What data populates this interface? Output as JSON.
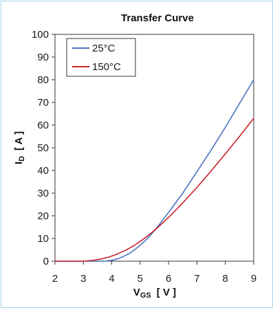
{
  "chart_data": {
    "type": "line",
    "title": "Transfer Curve",
    "xlabel": {
      "main": "V",
      "sub": "GS",
      "unit": "[ V ]"
    },
    "ylabel": {
      "main": "I",
      "sub": "D",
      "unit": "[ A ]"
    },
    "xlim": [
      2,
      9
    ],
    "ylim": [
      0,
      100
    ],
    "x_ticks": [
      2,
      3,
      4,
      5,
      6,
      7,
      8,
      9
    ],
    "y_ticks": [
      0,
      10,
      20,
      30,
      40,
      50,
      60,
      70,
      80,
      90,
      100
    ],
    "grid": false,
    "legend_position": "top-left",
    "series": [
      {
        "name": "25°C",
        "color": "#4a72c0",
        "x": [
          2.0,
          3.5,
          3.8,
          4.0,
          4.2,
          4.4,
          4.6,
          4.8,
          5.0,
          5.2,
          5.4,
          5.6,
          5.8,
          6.0,
          6.5,
          7.0,
          7.5,
          8.0,
          8.5,
          9.0
        ],
        "y": [
          0,
          0,
          0.1,
          0.4,
          1.0,
          2.0,
          3.3,
          5.0,
          7.0,
          9.3,
          12.0,
          15.0,
          18.2,
          21.5,
          30.0,
          39.5,
          49.0,
          59.0,
          69.5,
          80.0
        ]
      },
      {
        "name": "150°C",
        "color": "#c82028",
        "x": [
          2.0,
          3.0,
          3.3,
          3.6,
          3.9,
          4.2,
          4.5,
          4.8,
          5.1,
          5.4,
          5.7,
          6.0,
          6.5,
          7.0,
          7.5,
          8.0,
          8.5,
          9.0
        ],
        "y": [
          0,
          0,
          0.3,
          0.9,
          1.8,
          3.2,
          4.9,
          7.0,
          9.6,
          12.5,
          15.8,
          19.3,
          25.7,
          32.5,
          39.8,
          47.3,
          55.0,
          63.0
        ]
      }
    ]
  }
}
